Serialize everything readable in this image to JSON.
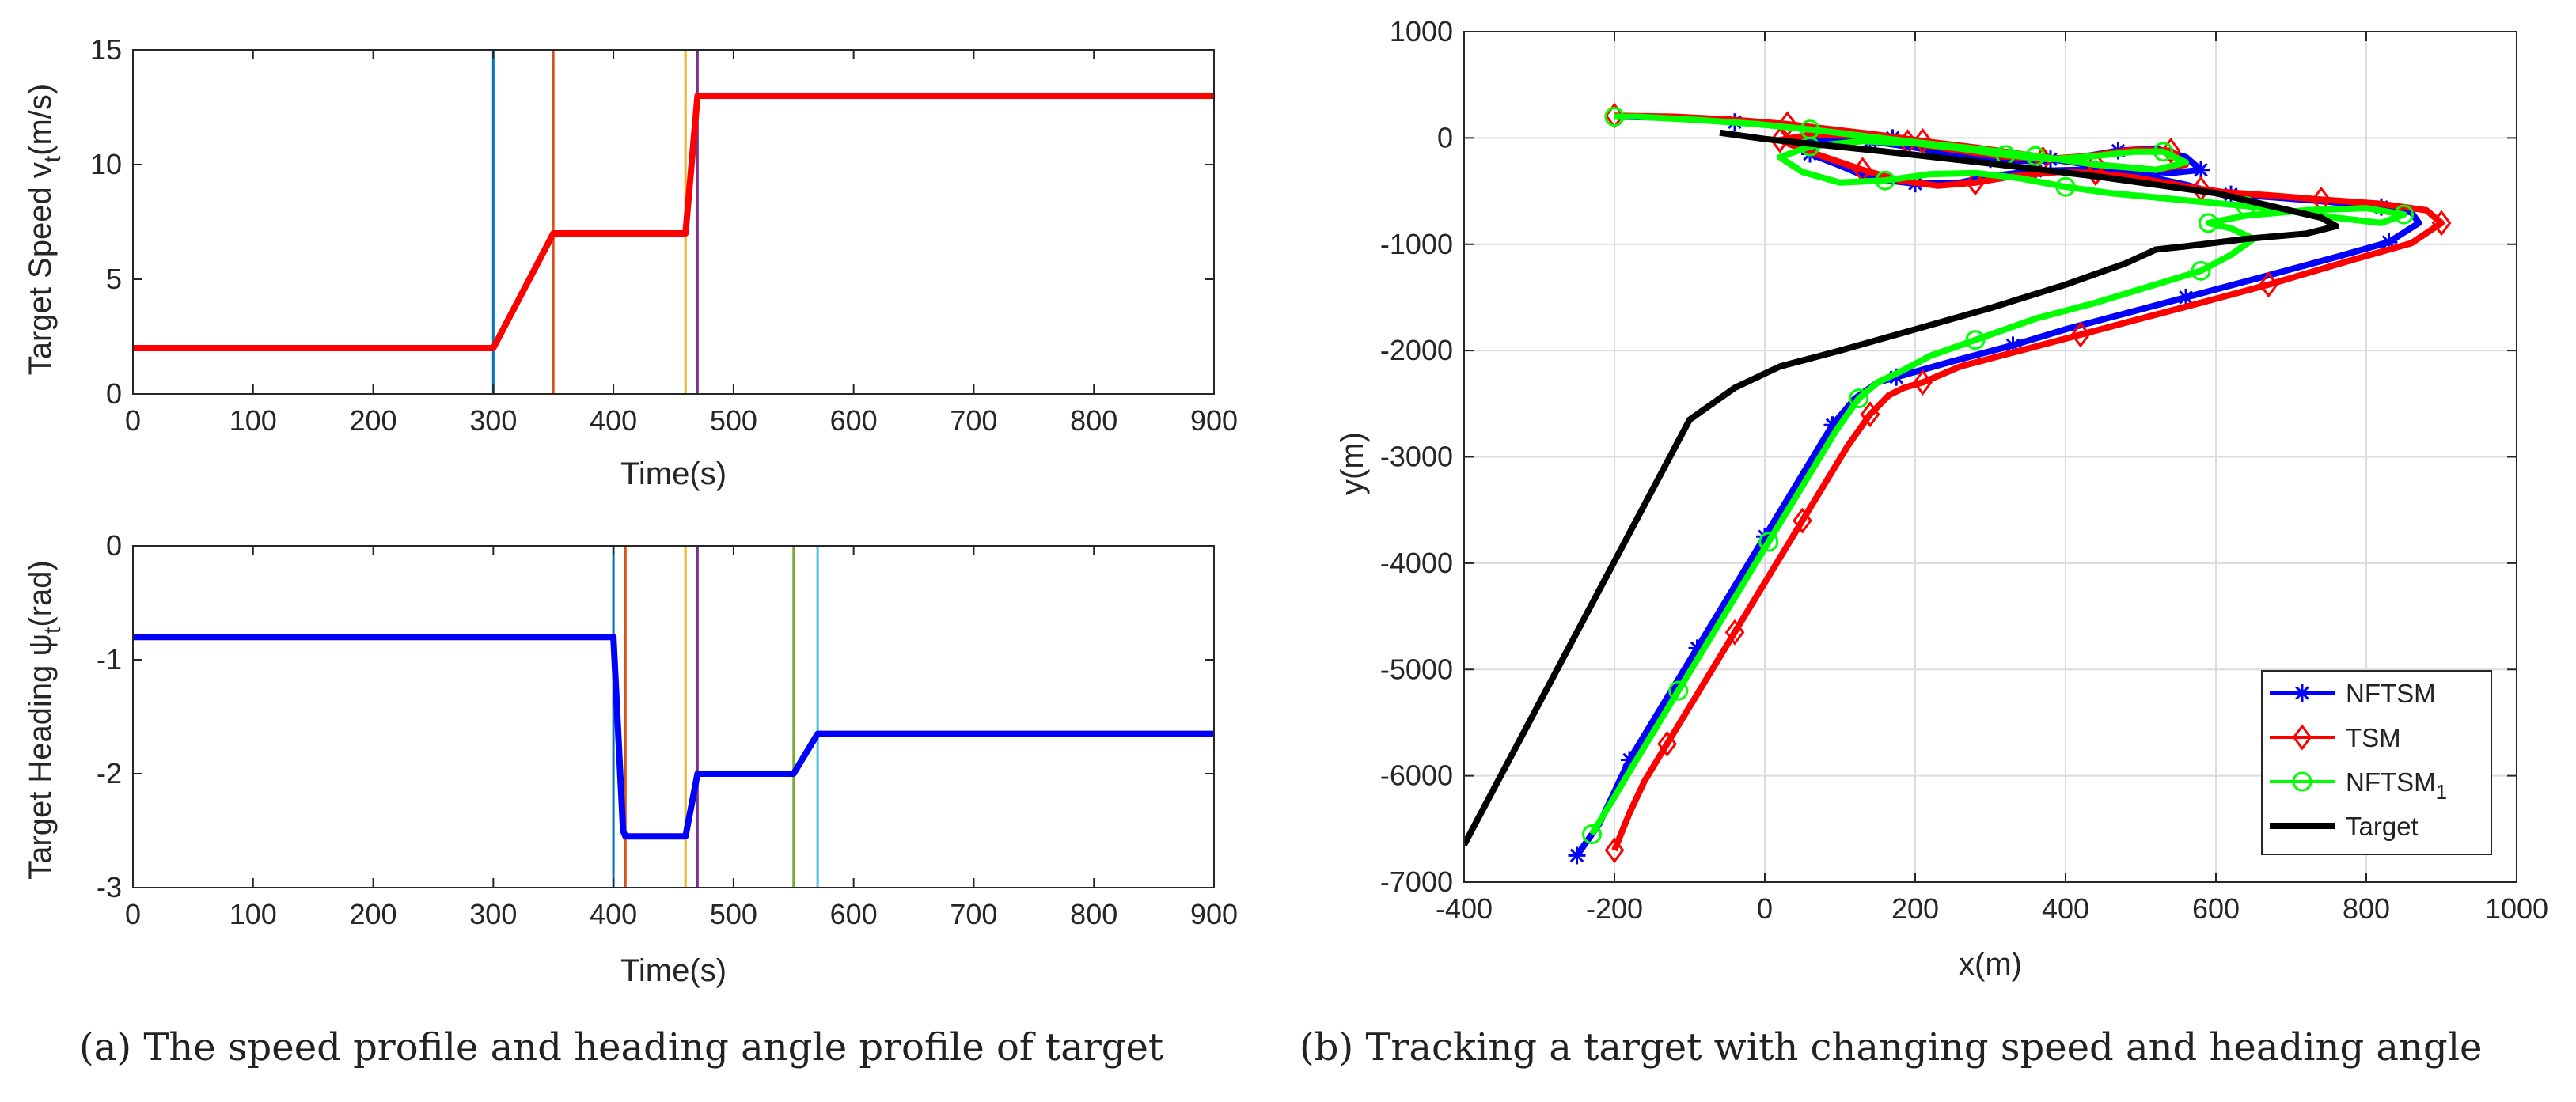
{
  "captions": {
    "a": "(a)  The speed profile and heading angle profile of target",
    "b": "(b)  Tracking a target with changing speed and heading angle"
  },
  "chart_data": [
    {
      "type": "line",
      "id": "speed",
      "title": "",
      "xlabel": "Time(s)",
      "ylabel_main": "Target Speed v",
      "ylabel_sub": "t",
      "ylabel_unit": "(m/s)",
      "xlim": [
        0,
        900
      ],
      "ylim": [
        0,
        15
      ],
      "xticks": [
        0,
        100,
        200,
        300,
        400,
        500,
        600,
        700,
        800,
        900
      ],
      "yticks": [
        0,
        5,
        10,
        15
      ],
      "series": [
        {
          "name": "speed",
          "color": "#ff0000",
          "x": [
            0,
            300,
            350,
            460,
            470,
            900
          ],
          "y": [
            2,
            2,
            7,
            7,
            13,
            13
          ]
        }
      ],
      "vlines": [
        {
          "x": 300,
          "color": "#0072bd"
        },
        {
          "x": 350,
          "color": "#d95319"
        },
        {
          "x": 460,
          "color": "#edb120"
        },
        {
          "x": 470,
          "color": "#7e2f8e"
        }
      ]
    },
    {
      "type": "line",
      "id": "heading",
      "title": "",
      "xlabel": "Time(s)",
      "ylabel_main": "Target Heading  ψ",
      "ylabel_sub": "t",
      "ylabel_unit": "(rad)",
      "xlim": [
        0,
        900
      ],
      "ylim": [
        -3,
        0
      ],
      "xticks": [
        0,
        100,
        200,
        300,
        400,
        500,
        600,
        700,
        800,
        900
      ],
      "yticks": [
        -3,
        -2,
        -1,
        0
      ],
      "series": [
        {
          "name": "heading",
          "color": "#0000ff",
          "x": [
            0,
            400,
            408,
            410,
            460,
            470,
            550,
            570,
            900
          ],
          "y": [
            -0.8,
            -0.8,
            -2.5,
            -2.55,
            -2.55,
            -2.0,
            -2.0,
            -1.65,
            -1.65
          ]
        }
      ],
      "vlines": [
        {
          "x": 400,
          "color": "#0072bd"
        },
        {
          "x": 410,
          "color": "#d95319"
        },
        {
          "x": 460,
          "color": "#edb120"
        },
        {
          "x": 470,
          "color": "#7e2f8e"
        },
        {
          "x": 550,
          "color": "#77ac30"
        },
        {
          "x": 570,
          "color": "#4dbeee"
        }
      ]
    },
    {
      "type": "line",
      "id": "trajectory",
      "title": "",
      "xlabel": "x(m)",
      "ylabel": "y(m)",
      "xlim": [
        -400,
        1000
      ],
      "ylim": [
        -7000,
        1000
      ],
      "xticks": [
        -400,
        -200,
        0,
        200,
        400,
        600,
        800,
        1000
      ],
      "yticks": [
        -7000,
        -6000,
        -5000,
        -4000,
        -3000,
        -2000,
        -1000,
        0,
        1000
      ],
      "grid": true,
      "legend_position": "bottom-right",
      "series": [
        {
          "name": "NFTSM",
          "color": "#0000ff",
          "marker": "asterisk",
          "x": [
            -250,
            -220,
            -200,
            -180,
            -150,
            -120,
            -90,
            -60,
            -30,
            0,
            30,
            60,
            90,
            120,
            150,
            175,
            200,
            250,
            330,
            400,
            480,
            560,
            650,
            760,
            830,
            870,
            860,
            820,
            750,
            680,
            620,
            590,
            560,
            520,
            460,
            420,
            360,
            300,
            260,
            200,
            140,
            100,
            60,
            40,
            80,
            140,
            200,
            250,
            300,
            360,
            420,
            470,
            520,
            560,
            580,
            540,
            460,
            380,
            300,
            230,
            170,
            110,
            40,
            -40,
            -120,
            -200
          ],
          "y": [
            -6750,
            -6450,
            -6150,
            -5850,
            -5500,
            -5150,
            -4800,
            -4450,
            -4100,
            -3750,
            -3400,
            -3050,
            -2700,
            -2450,
            -2300,
            -2250,
            -2200,
            -2100,
            -1950,
            -1800,
            -1650,
            -1500,
            -1330,
            -1120,
            -980,
            -800,
            -700,
            -650,
            -600,
            -560,
            -530,
            -500,
            -440,
            -380,
            -330,
            -300,
            -310,
            -360,
            -420,
            -430,
            -380,
            -260,
            -150,
            -60,
            -20,
            -30,
            -90,
            -150,
            -200,
            -220,
            -180,
            -120,
            -100,
            -180,
            -300,
            -330,
            -280,
            -200,
            -120,
            -60,
            0,
            50,
            100,
            150,
            190,
            200
          ],
          "marker_every": 3
        },
        {
          "name": "TSM",
          "color": "#ff0000",
          "marker": "diamond",
          "x": [
            -200,
            -180,
            -160,
            -130,
            -100,
            -70,
            -40,
            -10,
            20,
            50,
            80,
            110,
            140,
            165,
            185,
            210,
            260,
            340,
            420,
            500,
            580,
            670,
            780,
            860,
            900,
            880,
            820,
            740,
            670,
            610,
            580,
            540,
            490,
            440,
            390,
            330,
            280,
            230,
            180,
            130,
            80,
            40,
            20,
            60,
            120,
            190,
            250,
            310,
            370,
            430,
            490,
            540,
            560,
            520,
            440,
            360,
            280,
            210,
            150,
            90,
            30,
            -40,
            -120,
            -200
          ],
          "y": [
            -6700,
            -6350,
            -6050,
            -5700,
            -5350,
            -5000,
            -4650,
            -4300,
            -3950,
            -3600,
            -3250,
            -2900,
            -2600,
            -2420,
            -2350,
            -2300,
            -2150,
            -2000,
            -1850,
            -1700,
            -1550,
            -1380,
            -1150,
            -990,
            -800,
            -680,
            -620,
            -580,
            -540,
            -510,
            -480,
            -430,
            -370,
            -330,
            -320,
            -360,
            -420,
            -450,
            -400,
            -300,
            -180,
            -80,
            -20,
            30,
            20,
            -40,
            -110,
            -170,
            -200,
            -170,
            -110,
            -120,
            -250,
            -300,
            -250,
            -170,
            -90,
            -30,
            30,
            80,
            130,
            170,
            200,
            210
          ],
          "marker_every": 3
        },
        {
          "name": "NFTSM",
          "name_sub": "1",
          "color": "#00ff00",
          "marker": "circle",
          "x": [
            -230,
            -200,
            -175,
            -145,
            -115,
            -85,
            -55,
            -25,
            5,
            35,
            65,
            95,
            125,
            150,
            180,
            220,
            280,
            360,
            440,
            510,
            580,
            620,
            650,
            620,
            590,
            640,
            720,
            800,
            850,
            820,
            760,
            700,
            640,
            580,
            520,
            460,
            400,
            340,
            280,
            220,
            160,
            100,
            50,
            20,
            60,
            130,
            200,
            260,
            320,
            380,
            440,
            490,
            530,
            560,
            520,
            440,
            360,
            280,
            200,
            130,
            60,
            -10,
            -90,
            -170,
            -200
          ],
          "y": [
            -6550,
            -6200,
            -5900,
            -5550,
            -5200,
            -4850,
            -4500,
            -4150,
            -3800,
            -3450,
            -3100,
            -2750,
            -2450,
            -2300,
            -2200,
            -2050,
            -1900,
            -1700,
            -1550,
            -1400,
            -1250,
            -1100,
            -950,
            -850,
            -800,
            -730,
            -680,
            -660,
            -720,
            -800,
            -750,
            -690,
            -640,
            -600,
            -560,
            -520,
            -460,
            -380,
            -330,
            -340,
            -400,
            -420,
            -320,
            -180,
            -80,
            -30,
            -50,
            -100,
            -160,
            -200,
            -170,
            -130,
            -130,
            -230,
            -300,
            -250,
            -170,
            -100,
            -40,
            20,
            80,
            130,
            170,
            200,
            200
          ],
          "marker_every": 4
        },
        {
          "name": "Target",
          "color": "#000000",
          "marker": "none",
          "x": [
            -400,
            -340,
            -280,
            -220,
            -160,
            -100,
            -40,
            -10,
            20,
            100,
            200,
            300,
            400,
            480,
            520,
            560,
            640,
            720,
            760,
            740,
            600,
            450,
            300,
            150,
            0,
            -60
          ],
          "y": [
            -6650,
            -5850,
            -5050,
            -4250,
            -3450,
            -2650,
            -2350,
            -2250,
            -2150,
            -2000,
            -1800,
            -1600,
            -1380,
            -1180,
            -1050,
            -1020,
            -950,
            -900,
            -830,
            -750,
            -520,
            -370,
            -240,
            -120,
            -10,
            50
          ]
        }
      ]
    }
  ]
}
